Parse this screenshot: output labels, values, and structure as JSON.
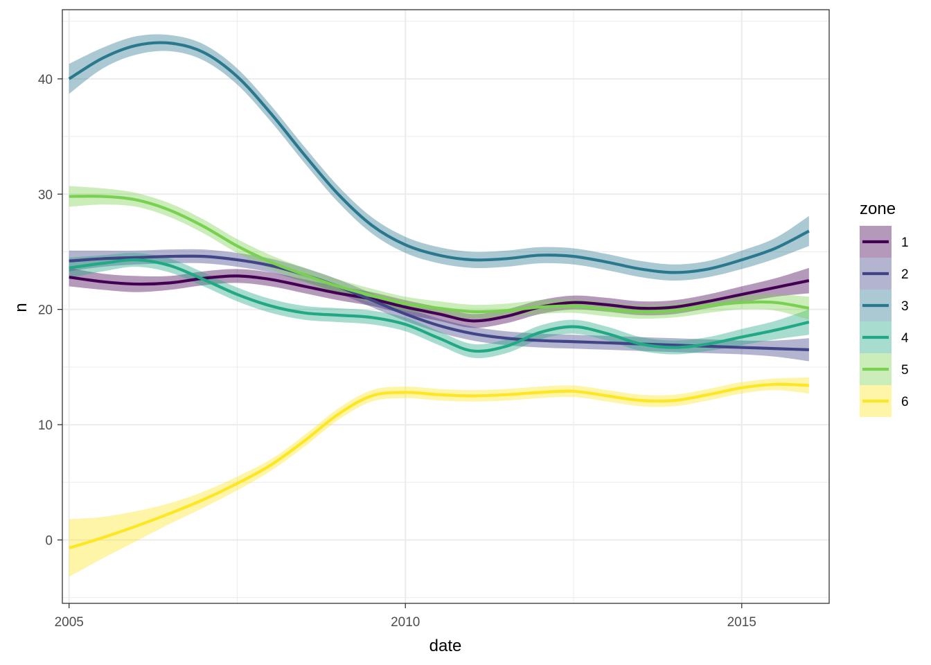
{
  "chart_data": {
    "type": "line",
    "title": "",
    "xlabel": "date",
    "ylabel": "n",
    "xlim": [
      2004.9,
      2016.3
    ],
    "ylim": [
      -5.5,
      46
    ],
    "x_ticks": [
      2005,
      2010,
      2015
    ],
    "x_tick_labels": [
      "2005",
      "2010",
      "2015"
    ],
    "y_ticks": [
      0,
      10,
      20,
      30,
      40
    ],
    "y_tick_labels": [
      "0",
      "10",
      "20",
      "30",
      "40"
    ],
    "x_minor_ticks": [
      2007.5,
      2012.5
    ],
    "y_minor_ticks": [
      -5,
      5,
      15,
      25,
      35,
      45
    ],
    "grid": true,
    "legend": {
      "title": "zone",
      "position": "right"
    },
    "series": [
      {
        "name": "1",
        "color": "#440154",
        "x": [
          2005.0,
          2005.5,
          2006.0,
          2006.5,
          2007.0,
          2007.5,
          2008.0,
          2008.5,
          2009.0,
          2009.5,
          2010.0,
          2010.5,
          2011.0,
          2011.5,
          2012.0,
          2012.5,
          2013.0,
          2013.5,
          2014.0,
          2014.5,
          2015.0,
          2015.5,
          2016.0
        ],
        "y": [
          22.8,
          22.4,
          22.2,
          22.3,
          22.7,
          22.9,
          22.6,
          22.0,
          21.4,
          20.9,
          20.2,
          19.6,
          19.0,
          19.4,
          20.2,
          20.6,
          20.4,
          20.1,
          20.2,
          20.7,
          21.3,
          21.9,
          22.5
        ],
        "band": [
          0.8,
          0.7,
          0.7,
          0.6,
          0.6,
          0.6,
          0.6,
          0.6,
          0.6,
          0.6,
          0.6,
          0.6,
          0.6,
          0.6,
          0.6,
          0.6,
          0.6,
          0.6,
          0.6,
          0.6,
          0.7,
          0.8,
          1.1
        ]
      },
      {
        "name": "2",
        "color": "#414487",
        "x": [
          2005.0,
          2005.5,
          2006.0,
          2006.5,
          2007.0,
          2007.5,
          2008.0,
          2008.5,
          2009.0,
          2009.5,
          2010.0,
          2010.5,
          2011.0,
          2011.5,
          2012.0,
          2012.5,
          2013.0,
          2013.5,
          2014.0,
          2014.5,
          2015.0,
          2015.5,
          2016.0
        ],
        "y": [
          24.2,
          24.4,
          24.5,
          24.6,
          24.6,
          24.3,
          23.8,
          23.0,
          22.0,
          20.8,
          19.6,
          18.6,
          17.9,
          17.5,
          17.3,
          17.2,
          17.1,
          17.0,
          16.9,
          16.8,
          16.7,
          16.6,
          16.5
        ],
        "band": [
          0.9,
          0.7,
          0.6,
          0.6,
          0.6,
          0.6,
          0.6,
          0.6,
          0.6,
          0.6,
          0.6,
          0.6,
          0.6,
          0.6,
          0.6,
          0.6,
          0.6,
          0.6,
          0.6,
          0.6,
          0.6,
          0.7,
          1.0
        ]
      },
      {
        "name": "3",
        "color": "#2A788E",
        "x": [
          2005.0,
          2005.5,
          2006.0,
          2006.5,
          2007.0,
          2007.5,
          2008.0,
          2008.5,
          2009.0,
          2009.5,
          2010.0,
          2010.5,
          2011.0,
          2011.5,
          2012.0,
          2012.5,
          2013.0,
          2013.5,
          2014.0,
          2014.5,
          2015.0,
          2015.5,
          2016.0
        ],
        "y": [
          40.0,
          41.8,
          42.9,
          43.1,
          42.3,
          40.2,
          37.0,
          33.4,
          30.0,
          27.3,
          25.6,
          24.7,
          24.3,
          24.4,
          24.7,
          24.6,
          24.1,
          23.5,
          23.2,
          23.5,
          24.3,
          25.3,
          26.8
        ],
        "band": [
          1.3,
          0.9,
          0.8,
          0.7,
          0.7,
          0.7,
          0.7,
          0.7,
          0.7,
          0.7,
          0.7,
          0.7,
          0.7,
          0.7,
          0.7,
          0.7,
          0.7,
          0.7,
          0.7,
          0.7,
          0.8,
          0.9,
          1.3
        ]
      },
      {
        "name": "4",
        "color": "#22A884",
        "x": [
          2005.0,
          2005.5,
          2006.0,
          2006.5,
          2007.0,
          2007.5,
          2008.0,
          2008.5,
          2009.0,
          2009.5,
          2010.0,
          2010.5,
          2011.0,
          2011.5,
          2012.0,
          2012.5,
          2013.0,
          2013.5,
          2014.0,
          2014.5,
          2015.0,
          2015.5,
          2016.0
        ],
        "y": [
          23.6,
          24.0,
          24.3,
          23.8,
          22.6,
          21.3,
          20.3,
          19.7,
          19.5,
          19.3,
          18.7,
          17.5,
          16.4,
          16.8,
          18.0,
          18.5,
          17.9,
          17.0,
          16.7,
          17.0,
          17.6,
          18.2,
          18.9
        ],
        "band": [
          0.9,
          0.7,
          0.6,
          0.6,
          0.6,
          0.6,
          0.6,
          0.6,
          0.6,
          0.6,
          0.6,
          0.6,
          0.6,
          0.6,
          0.6,
          0.6,
          0.6,
          0.6,
          0.6,
          0.6,
          0.7,
          0.8,
          1.1
        ]
      },
      {
        "name": "5",
        "color": "#7AD151",
        "x": [
          2005.0,
          2005.5,
          2006.0,
          2006.5,
          2007.0,
          2007.5,
          2008.0,
          2008.5,
          2009.0,
          2009.5,
          2010.0,
          2010.5,
          2011.0,
          2011.5,
          2012.0,
          2012.5,
          2013.0,
          2013.5,
          2014.0,
          2014.5,
          2015.0,
          2015.5,
          2016.0
        ],
        "y": [
          29.8,
          29.8,
          29.5,
          28.6,
          27.2,
          25.5,
          24.1,
          23.0,
          22.0,
          21.2,
          20.5,
          20.1,
          19.8,
          19.9,
          20.2,
          20.3,
          20.0,
          19.8,
          19.9,
          20.3,
          20.6,
          20.6,
          20.1
        ],
        "band": [
          0.9,
          0.7,
          0.6,
          0.6,
          0.6,
          0.6,
          0.6,
          0.6,
          0.6,
          0.6,
          0.6,
          0.6,
          0.6,
          0.6,
          0.6,
          0.6,
          0.6,
          0.6,
          0.6,
          0.6,
          0.6,
          0.7,
          1.0
        ]
      },
      {
        "name": "6",
        "color": "#FDE725",
        "x": [
          2005.0,
          2005.5,
          2006.0,
          2006.5,
          2007.0,
          2007.5,
          2008.0,
          2008.5,
          2009.0,
          2009.5,
          2010.0,
          2010.5,
          2011.0,
          2011.5,
          2012.0,
          2012.5,
          2013.0,
          2013.5,
          2014.0,
          2014.5,
          2015.0,
          2015.5,
          2016.0
        ],
        "y": [
          -0.7,
          0.2,
          1.2,
          2.3,
          3.5,
          4.9,
          6.5,
          8.6,
          10.9,
          12.5,
          12.8,
          12.6,
          12.5,
          12.6,
          12.8,
          12.9,
          12.5,
          12.1,
          12.1,
          12.6,
          13.2,
          13.5,
          13.4
        ],
        "band": [
          2.5,
          1.8,
          1.3,
          0.9,
          0.7,
          0.6,
          0.5,
          0.5,
          0.5,
          0.5,
          0.5,
          0.5,
          0.5,
          0.5,
          0.5,
          0.5,
          0.5,
          0.5,
          0.5,
          0.5,
          0.5,
          0.5,
          0.7
        ]
      }
    ]
  }
}
